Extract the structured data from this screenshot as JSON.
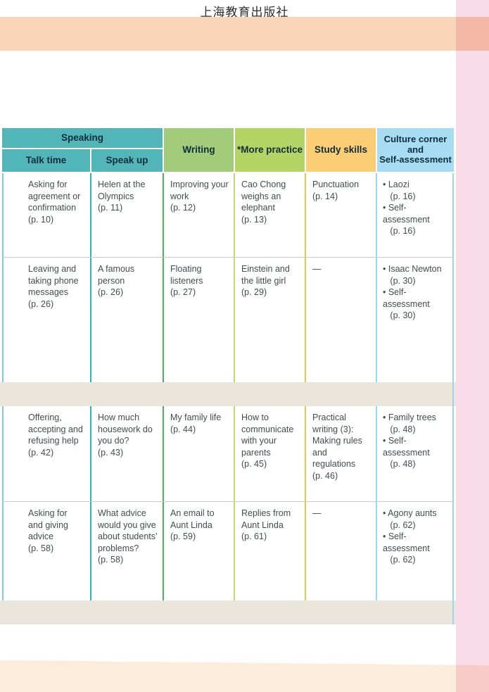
{
  "page": {
    "publisher": "上海教育出版社"
  },
  "colors": {
    "top_band": "#f8d5b8",
    "bottom_band": "#fcecda",
    "pink_edge": "#fadce8",
    "separator_band": "#eae6dc",
    "header_speaking": "#52b5b7",
    "header_writing": "#a2cc79",
    "header_more_practice": "#b4d565",
    "header_study_skills": "#fbce75",
    "header_culture": "#a7dcf2"
  },
  "table": {
    "headers": {
      "speaking": "Speaking",
      "talk_time": "Talk time",
      "speak_up": "Speak up",
      "writing": "Writing",
      "more_practice": "*More practice",
      "study_skills": "Study skills",
      "culture": "Culture corner\nand\nSelf-assessment"
    },
    "rows": [
      {
        "talk_time": "Asking for\nagreement or\nconfirmation\n(p. 10)",
        "speak_up": "Helen at the\nOlympics\n(p. 11)",
        "writing": "Improving your\nwork\n(p. 12)",
        "more_practice": "Cao Chong\nweighs an\nelephant\n(p. 13)",
        "study_skills": "Punctuation\n(p. 14)",
        "culture": "• Laozi\n   (p. 16)\n• Self-assessment\n   (p. 16)"
      },
      {
        "talk_time": "Leaving and\ntaking phone\nmessages\n(p. 26)",
        "speak_up": "A famous\nperson\n(p. 26)",
        "writing": "Floating\nlisteners\n(p. 27)",
        "more_practice": "Einstein and\nthe little girl\n(p. 29)",
        "study_skills": "—",
        "culture": "• Isaac Newton\n   (p. 30)\n• Self-assessment\n   (p. 30)"
      },
      {
        "talk_time": "Offering,\naccepting and\nrefusing help\n(p. 42)",
        "speak_up": "How much\nhousework do\nyou do?\n(p. 43)",
        "writing": "My family life\n(p. 44)",
        "more_practice": "How to\ncommunicate\nwith your\nparents\n(p. 45)",
        "study_skills": "Practical\nwriting (3):\nMaking rules\nand regulations\n(p. 46)",
        "culture": "• Family trees\n   (p. 48)\n• Self-assessment\n   (p. 48)"
      },
      {
        "talk_time": "Asking for\nand giving\nadvice\n(p. 58)",
        "speak_up": "What advice\nwould you give\nabout students’\nproblems?\n(p. 58)",
        "writing": "An email to\nAunt Linda\n(p. 59)",
        "more_practice": "Replies from\nAunt Linda\n(p. 61)",
        "study_skills": "—",
        "culture": "• Agony aunts\n   (p. 62)\n• Self-assessment\n   (p. 62)"
      }
    ]
  }
}
